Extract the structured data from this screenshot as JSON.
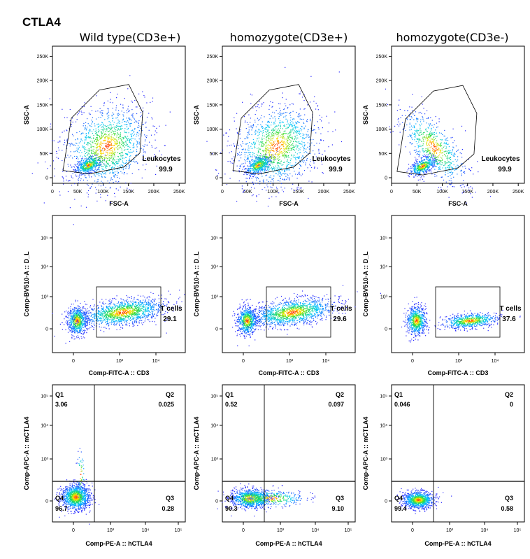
{
  "title": "CTLA4",
  "columns": [
    "Wild type(CD3e+)",
    "homozygote(CD3e+)",
    "homozygote(CD3e-)"
  ],
  "chart_data": [
    {
      "type": "scatter",
      "row": "leukocyte-gate",
      "xlabel": "FSC-A",
      "ylabel": "SSC-A",
      "x_ticks": [
        "0",
        "50K",
        "100K",
        "150K",
        "200K",
        "250K"
      ],
      "y_ticks": [
        "0",
        "50K",
        "100K",
        "150K",
        "200K",
        "250K"
      ],
      "xlim": [
        0,
        262144
      ],
      "ylim": [
        0,
        262144
      ],
      "gate_label": "Leukocytes",
      "panels": [
        {
          "column": "Wild type(CD3e+)",
          "gate_value": "99.9",
          "centroid": [
            65000,
            22000
          ],
          "spread": "wide"
        },
        {
          "column": "homozygote(CD3e+)",
          "gate_value": "99.9",
          "centroid": [
            65000,
            22000
          ],
          "spread": "wide"
        },
        {
          "column": "homozygote(CD3e-)",
          "gate_value": "99.9",
          "centroid": [
            55000,
            20000
          ],
          "spread": "narrow"
        }
      ]
    },
    {
      "type": "scatter",
      "row": "t-cell-gate",
      "xlabel": "Comp-FITC-A :: CD3",
      "ylabel": "Comp-BV510-A :: D_L",
      "x_ticks": [
        "0",
        "10³",
        "10⁴"
      ],
      "y_ticks": [
        "0",
        "10³",
        "10⁴",
        "10⁵"
      ],
      "scale": "biexponential",
      "gate_label": "T cells",
      "panels": [
        {
          "column": "Wild type(CD3e+)",
          "gate_value": "29.1"
        },
        {
          "column": "homozygote(CD3e+)",
          "gate_value": "29.6"
        },
        {
          "column": "homozygote(CD3e-)",
          "gate_value": "37.6"
        }
      ]
    },
    {
      "type": "scatter",
      "row": "quadrant",
      "xlabel": "Comp-PE-A :: hCTLA4",
      "ylabel": "Comp-APC-A :: mCTLA4",
      "x_ticks": [
        "0",
        "10³",
        "10⁴",
        "10⁵"
      ],
      "y_ticks": [
        "0",
        "10³",
        "10⁴",
        "10⁵"
      ],
      "scale": "biexponential",
      "panels": [
        {
          "column": "Wild type(CD3e+)",
          "quadrants": {
            "Q1": "3.06",
            "Q2": "0.025",
            "Q3": "0.28",
            "Q4": "96.7"
          }
        },
        {
          "column": "homozygote(CD3e+)",
          "quadrants": {
            "Q1": "0.52",
            "Q2": "0.097",
            "Q3": "9.10",
            "Q4": "90.3"
          }
        },
        {
          "column": "homozygote(CD3e-)",
          "quadrants": {
            "Q1": "0.046",
            "Q2": "0",
            "Q3": "0.58",
            "Q4": "99.4"
          }
        }
      ]
    }
  ]
}
